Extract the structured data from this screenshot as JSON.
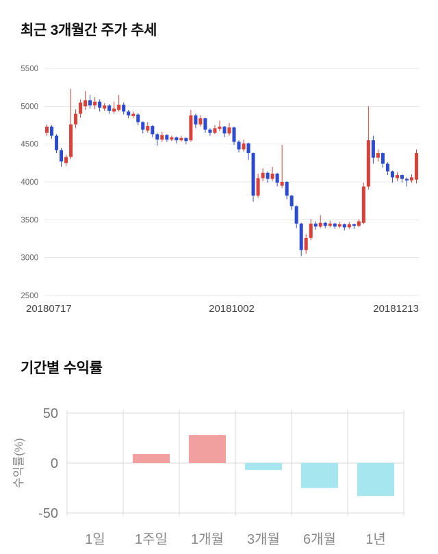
{
  "page": {
    "background": "#ffffff"
  },
  "sections": {
    "price_trend": {
      "title": "최근 3개월간 주가 추세"
    },
    "returns": {
      "title": "기간별 수익률"
    }
  },
  "chart_data": [
    {
      "id": "price-candlestick",
      "type": "candlestick",
      "title": "최근 3개월간 주가 추세",
      "ylim": [
        2500,
        5500
      ],
      "yticks": [
        5500,
        5000,
        4500,
        4000,
        3500,
        3000,
        2500
      ],
      "x_axis_labels": [
        "20180717",
        "20181002",
        "20181213"
      ],
      "legend": "none",
      "grid": "horizontal",
      "colors": {
        "up": "#d8423a",
        "down": "#2d4bd0",
        "grid": "#e7e7e7",
        "tick_text": "#666666",
        "axis_text": "#444444"
      },
      "candles_ohlc": [
        [
          4650,
          4760,
          4610,
          4730
        ],
        [
          4730,
          4750,
          4570,
          4610
        ],
        [
          4610,
          4630,
          4380,
          4420
        ],
        [
          4420,
          4450,
          4200,
          4270
        ],
        [
          4250,
          4360,
          4210,
          4330
        ],
        [
          4330,
          5230,
          4300,
          4760
        ],
        [
          4760,
          4960,
          4710,
          4900
        ],
        [
          4900,
          5090,
          4850,
          5050
        ],
        [
          5000,
          5200,
          4950,
          5080
        ],
        [
          5080,
          5150,
          4970,
          5010
        ],
        [
          5010,
          5120,
          4960,
          5060
        ],
        [
          5060,
          5090,
          4930,
          4980
        ],
        [
          4970,
          5040,
          4940,
          5010
        ],
        [
          5010,
          5030,
          4900,
          4940
        ],
        [
          4930,
          5060,
          4900,
          4970
        ],
        [
          4950,
          5150,
          4930,
          5020
        ],
        [
          5020,
          5050,
          4890,
          4930
        ],
        [
          4930,
          4950,
          4840,
          4880
        ],
        [
          4870,
          4930,
          4840,
          4900
        ],
        [
          4890,
          4910,
          4750,
          4790
        ],
        [
          4790,
          4800,
          4640,
          4690
        ],
        [
          4680,
          4790,
          4650,
          4740
        ],
        [
          4740,
          4750,
          4590,
          4630
        ],
        [
          4630,
          4650,
          4480,
          4560
        ],
        [
          4560,
          4660,
          4530,
          4620
        ],
        [
          4620,
          4630,
          4530,
          4560
        ],
        [
          4560,
          4610,
          4540,
          4590
        ],
        [
          4590,
          4600,
          4510,
          4550
        ],
        [
          4550,
          4610,
          4530,
          4580
        ],
        [
          4580,
          4590,
          4500,
          4540
        ],
        [
          4550,
          4950,
          4530,
          4880
        ],
        [
          4880,
          4900,
          4710,
          4760
        ],
        [
          4760,
          4880,
          4730,
          4840
        ],
        [
          4840,
          4850,
          4650,
          4690
        ],
        [
          4690,
          4710,
          4610,
          4650
        ],
        [
          4650,
          4750,
          4630,
          4710
        ],
        [
          4700,
          4810,
          4670,
          4730
        ],
        [
          4730,
          4740,
          4590,
          4640
        ],
        [
          4640,
          4780,
          4610,
          4720
        ],
        [
          4720,
          4730,
          4490,
          4530
        ],
        [
          4530,
          4550,
          4390,
          4430
        ],
        [
          4430,
          4560,
          4400,
          4510
        ],
        [
          4510,
          4520,
          4290,
          4380
        ],
        [
          4380,
          4390,
          3740,
          3820
        ],
        [
          3820,
          4110,
          3790,
          4050
        ],
        [
          4050,
          4180,
          4010,
          4120
        ],
        [
          4120,
          4140,
          3990,
          4040
        ],
        [
          4040,
          4200,
          4010,
          4110
        ],
        [
          4110,
          4120,
          3940,
          3990
        ],
        [
          3950,
          4490,
          3920,
          4000
        ],
        [
          4000,
          4010,
          3770,
          3820
        ],
        [
          3820,
          3830,
          3630,
          3680
        ],
        [
          3680,
          3690,
          3390,
          3450
        ],
        [
          3450,
          3460,
          3020,
          3100
        ],
        [
          3100,
          3310,
          3050,
          3260
        ],
        [
          3260,
          3510,
          3230,
          3450
        ],
        [
          3450,
          3480,
          3370,
          3410
        ],
        [
          3410,
          3560,
          3390,
          3460
        ],
        [
          3460,
          3470,
          3390,
          3420
        ],
        [
          3420,
          3490,
          3400,
          3450
        ],
        [
          3450,
          3460,
          3380,
          3410
        ],
        [
          3410,
          3470,
          3390,
          3440
        ],
        [
          3440,
          3450,
          3360,
          3400
        ],
        [
          3400,
          3470,
          3380,
          3440
        ],
        [
          3440,
          3450,
          3380,
          3420
        ],
        [
          3420,
          3510,
          3400,
          3480
        ],
        [
          3460,
          3990,
          3440,
          3940
        ],
        [
          3940,
          5000,
          3900,
          4550
        ],
        [
          4550,
          4610,
          4240,
          4320
        ],
        [
          4320,
          4430,
          4270,
          4380
        ],
        [
          4380,
          4390,
          4190,
          4240
        ],
        [
          4240,
          4260,
          4090,
          4140
        ],
        [
          4140,
          4150,
          3990,
          4060
        ],
        [
          4050,
          4130,
          4010,
          4090
        ],
        [
          4090,
          4100,
          3990,
          4040
        ],
        [
          4040,
          4060,
          3940,
          4020
        ],
        [
          4020,
          4100,
          3990,
          4060
        ],
        [
          4030,
          4430,
          3980,
          4380
        ]
      ]
    },
    {
      "id": "period-returns",
      "type": "bar",
      "title": "기간별 수익률",
      "ylabel": "수익률(%)",
      "categories": [
        "1일",
        "1주일",
        "1개월",
        "3개월",
        "6개월",
        "1년"
      ],
      "values": [
        0,
        9,
        28,
        -7,
        -25,
        -33
      ],
      "yticks": [
        50,
        0,
        -50
      ],
      "ylim": [
        -53,
        53
      ],
      "legend": "none",
      "grid": "both",
      "colors": {
        "positive": "#f29f9f",
        "negative": "#a6e6ef",
        "grid": "#d9d9d9",
        "tick_text": "#777777",
        "label_text": "#888888"
      }
    }
  ]
}
